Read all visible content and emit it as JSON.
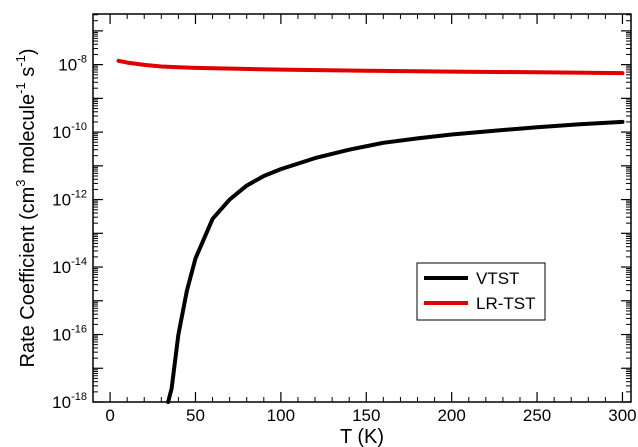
{
  "chart_data": {
    "type": "line",
    "title": "",
    "xlabel": "T (K)",
    "ylabel": {
      "prefix": "Rate Coefficient (cm",
      "sup1": "3",
      "mid": " molecule",
      "sup2": "-1",
      "mid2": " s",
      "sup3": "-1",
      "suffix": ")"
    },
    "xlim": [
      -10,
      305
    ],
    "ylim_log10": [
      -18,
      -6.5
    ],
    "y_scale": "log",
    "x_ticks": [
      0,
      50,
      100,
      150,
      200,
      250,
      300
    ],
    "y_ticks": [
      {
        "base": "10",
        "exp": "-18",
        "log": -18
      },
      {
        "base": "10",
        "exp": "-16",
        "log": -16
      },
      {
        "base": "10",
        "exp": "-14",
        "log": -14
      },
      {
        "base": "10",
        "exp": "-12",
        "log": -12
      },
      {
        "base": "10",
        "exp": "-10",
        "log": -10
      },
      {
        "base": "10",
        "exp": "-8",
        "log": -8
      }
    ],
    "legend_position": "lower-right",
    "series": [
      {
        "name": "VTST",
        "color": "#000000",
        "x": [
          34,
          36,
          40,
          45,
          50,
          60,
          70,
          80,
          90,
          100,
          120,
          140,
          160,
          180,
          200,
          225,
          250,
          275,
          300
        ],
        "y": [
          1e-18,
          2.5e-18,
          1e-16,
          2e-15,
          1.8e-14,
          2.7e-13,
          1e-12,
          2.6e-12,
          5e-12,
          8e-12,
          1.7e-11,
          3e-11,
          4.8e-11,
          6.5e-11,
          8.5e-11,
          1.1e-10,
          1.4e-10,
          1.7e-10,
          2e-10
        ]
      },
      {
        "name": "LR-TST",
        "color": "#e00000",
        "x": [
          5,
          10,
          20,
          30,
          40,
          50,
          75,
          100,
          150,
          200,
          250,
          300
        ],
        "y": [
          1.3e-08,
          1.15e-08,
          9.8e-09,
          8.8e-09,
          8.3e-09,
          8e-09,
          7.5e-09,
          7.1e-09,
          6.6e-09,
          6.2e-09,
          5.9e-09,
          5.6e-09
        ]
      }
    ]
  }
}
